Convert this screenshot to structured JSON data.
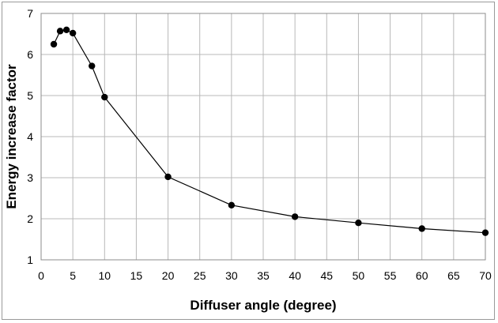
{
  "chart_data": {
    "type": "line",
    "title": "",
    "xlabel": "Diffuser angle (degree)",
    "ylabel": "Energy increase factor",
    "xlim": [
      0,
      70
    ],
    "ylim": [
      1,
      7
    ],
    "xticks": [
      0,
      5,
      10,
      15,
      20,
      25,
      30,
      35,
      40,
      45,
      50,
      55,
      60,
      65,
      70
    ],
    "yticks": [
      1,
      2,
      3,
      4,
      5,
      6,
      7
    ],
    "grid": true,
    "legend": "none",
    "series": [
      {
        "marker": "circle",
        "color": "#000000",
        "x": [
          2,
          3,
          4,
          5,
          8,
          10,
          20,
          30,
          40,
          50,
          60,
          70
        ],
        "y": [
          6.25,
          6.57,
          6.6,
          6.52,
          5.72,
          4.96,
          3.02,
          2.33,
          2.05,
          1.9,
          1.76,
          1.66
        ]
      }
    ]
  }
}
